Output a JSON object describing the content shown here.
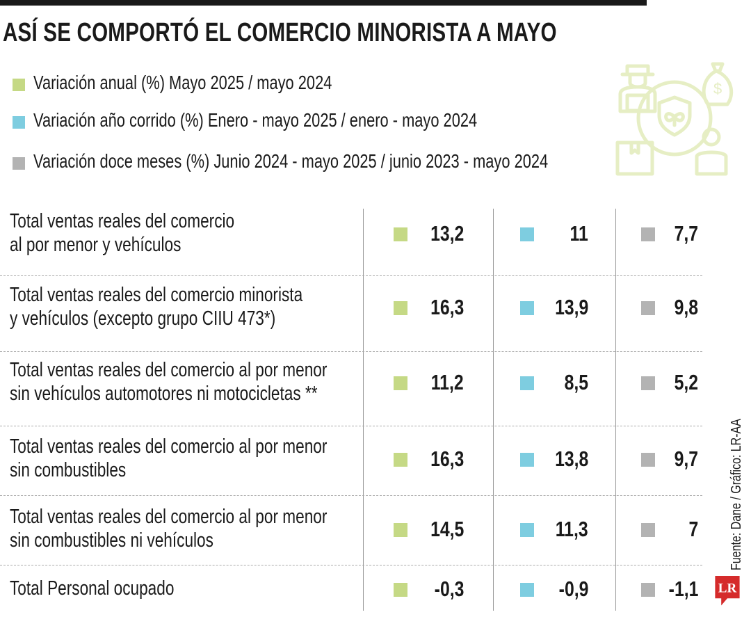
{
  "title": "ASÍ SE COMPORTÓ EL COMERCIO MINORISTA A MAYO",
  "legend": [
    {
      "label": "Variación anual (%)  Mayo 2025 / mayo 2024",
      "color": "#c5d985"
    },
    {
      "label": "Variación año corrido (%)  Enero - mayo 2025 / enero - mayo 2024",
      "color": "#7ecde0"
    },
    {
      "label": "Variación doce meses (%) Junio 2024 - mayo 2025 / junio 2023 - mayo 2024",
      "color": "#b3b3b3"
    }
  ],
  "chart_data": {
    "type": "table",
    "title": "ASÍ SE COMPORTÓ EL COMERCIO MINORISTA A MAYO",
    "series": [
      {
        "name": "Variación anual (%)  Mayo 2025 / mayo 2024",
        "color": "#c5d985"
      },
      {
        "name": "Variación año corrido (%)  Enero - mayo 2025 / enero - mayo 2024",
        "color": "#7ecde0"
      },
      {
        "name": "Variación doce meses (%) Junio 2024 - mayo 2025 / junio 2023 - mayo 2024",
        "color": "#b3b3b3"
      }
    ],
    "rows": [
      {
        "label": [
          "Total ventas reales del comercio",
          "al por menor y vehículos"
        ],
        "values": [
          "13,2",
          "11",
          "7,7"
        ]
      },
      {
        "label": [
          "Total ventas reales del comercio minorista",
          "y vehículos (excepto grupo CIIU 473*)"
        ],
        "values": [
          "16,3",
          "13,9",
          "9,8"
        ]
      },
      {
        "label": [
          "Total ventas reales del comercio al por menor",
          "sin vehículos automotores ni motocicletas **"
        ],
        "values": [
          "11,2",
          "8,5",
          "5,2"
        ]
      },
      {
        "label": [
          "Total ventas reales del comercio al por menor",
          "sin combustibles"
        ],
        "values": [
          "16,3",
          "13,8",
          "9,7"
        ]
      },
      {
        "label": [
          "Total ventas reales del comercio al por menor",
          "sin combustibles ni vehículos"
        ],
        "values": [
          "14,5",
          "11,3",
          "7"
        ]
      },
      {
        "label": [
          "Total Personal ocupado"
        ],
        "values": [
          "-0,3",
          "-0,9",
          "-1,1"
        ]
      }
    ]
  },
  "source": "Fuente: Dane / Gráfico: LR-AA",
  "logo": "LR",
  "icons": {
    "decorative": "commerce-network-icon",
    "logo": "lr-logo-icon"
  }
}
